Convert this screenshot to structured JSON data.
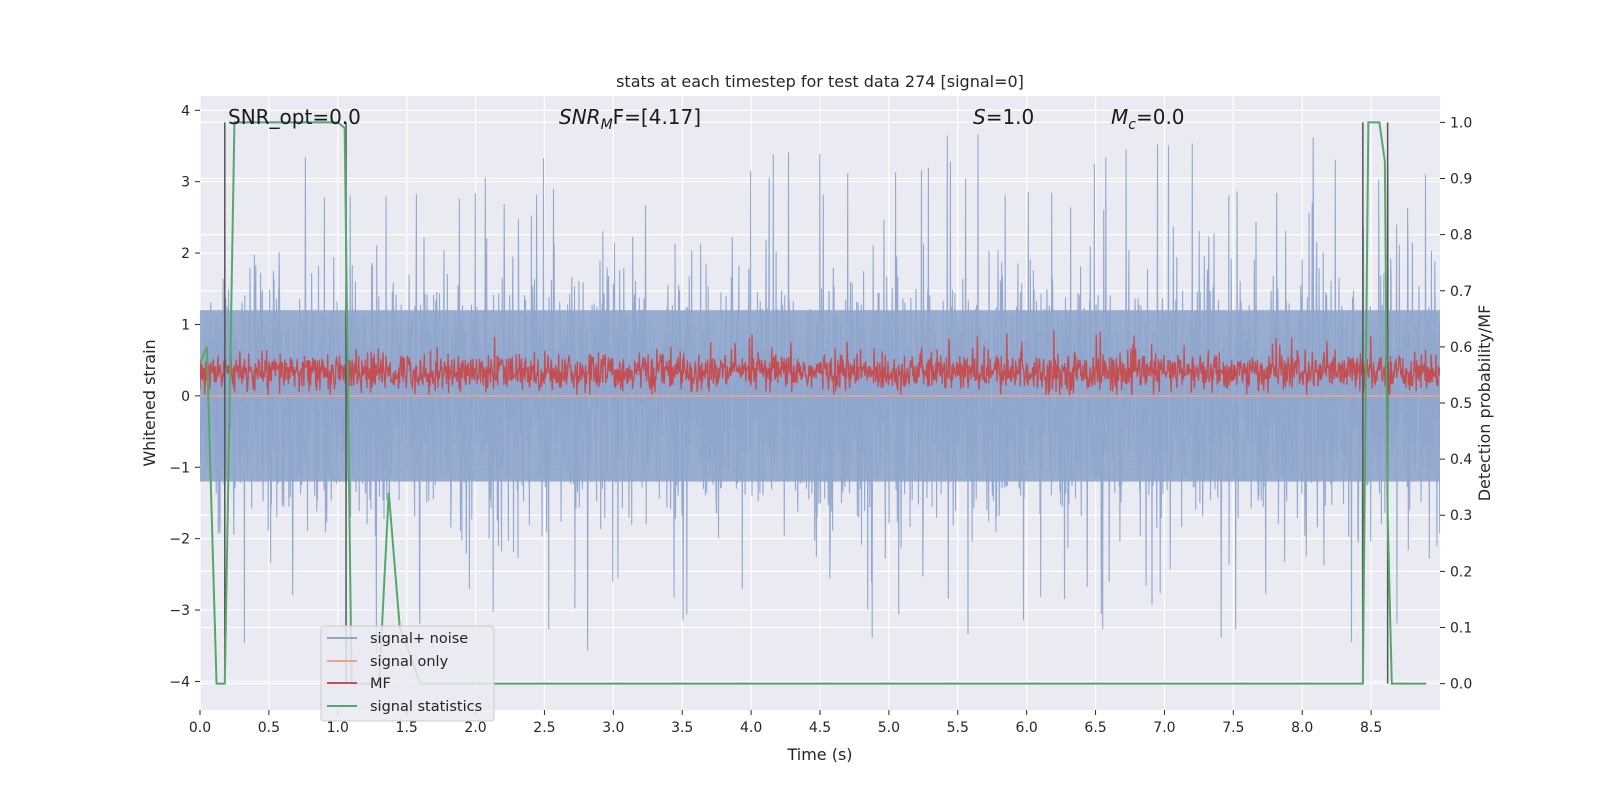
{
  "chart_data": {
    "type": "line",
    "title": "stats at each timestep for test data 274 [signal=0]",
    "xlabel": "Time (s)",
    "ylabel": "Whitened strain",
    "y2label": "Detection probability/MF",
    "xlim": [
      0.0,
      9.0
    ],
    "ylim": [
      -4.4,
      4.2
    ],
    "y2lim": [
      -0.047,
      1.047
    ],
    "x_ticks": [
      0.0,
      0.5,
      1.0,
      1.5,
      2.0,
      2.5,
      3.0,
      3.5,
      4.0,
      4.5,
      5.0,
      5.5,
      6.0,
      6.5,
      7.0,
      7.5,
      8.0,
      8.5
    ],
    "x_tick_labels": [
      "0.0",
      "0.5",
      "1.0",
      "1.5",
      "2.0",
      "2.5",
      "3.0",
      "3.5",
      "4.0",
      "4.5",
      "5.0",
      "5.5",
      "6.0",
      "6.5",
      "7.0",
      "7.5",
      "8.0",
      "8.5"
    ],
    "y_ticks": [
      -4,
      -3,
      -2,
      -1,
      0,
      1,
      2,
      3,
      4
    ],
    "y_tick_labels": [
      "−4",
      "−3",
      "−2",
      "−1",
      "0",
      "1",
      "2",
      "3",
      "4"
    ],
    "y2_ticks": [
      0.0,
      0.1,
      0.2,
      0.3,
      0.4,
      0.5,
      0.6,
      0.7,
      0.8,
      0.9,
      1.0
    ],
    "y2_tick_labels": [
      "0.0",
      "0.1",
      "0.2",
      "0.3",
      "0.4",
      "0.5",
      "0.6",
      "0.7",
      "0.8",
      "0.9",
      "1.0"
    ],
    "grid": true,
    "legend_position": "lower-left",
    "annotations": {
      "snr_opt": "SNR_opt=0.0",
      "snr_mf_main": "SNR",
      "snr_mf_sub": "M",
      "snr_mf_rest": "F=[4.17]",
      "s_var": "S",
      "s_rest": "=1.0",
      "mc_var": "M",
      "mc_sub": "c",
      "mc_rest": "=0.0"
    },
    "series": [
      {
        "name": "signal+ noise",
        "color": "#8fa5cc",
        "axis": "left",
        "description_shape": "dense noise band",
        "x_range": [
          0.0,
          9.0
        ],
        "band_core": [
          -1.2,
          1.2
        ],
        "typical_peaks": [
          -2.8,
          2.8
        ],
        "extremes": [
          -4.0,
          3.9
        ]
      },
      {
        "name": "signal only",
        "color": "#e8a58a",
        "axis": "left",
        "x": [
          0.0,
          9.0
        ],
        "y": [
          0.0,
          0.0
        ]
      },
      {
        "name": "MF",
        "color": "#c44e52",
        "axis": "right",
        "x_range": [
          0.0,
          9.0
        ],
        "typical_range": [
          0.52,
          0.6
        ],
        "max_value": 0.63
      },
      {
        "name": "signal statistics",
        "color": "#55a868",
        "axis": "right",
        "x": [
          0.0,
          0.05,
          0.12,
          0.18,
          0.25,
          1.0,
          1.05,
          1.1,
          1.3,
          1.37,
          1.45,
          1.6,
          8.44,
          8.48,
          8.56,
          8.6,
          8.62,
          8.65,
          8.9
        ],
        "y": [
          0.57,
          0.6,
          0.0,
          0.0,
          1.0,
          1.0,
          0.99,
          0.0,
          0.0,
          0.34,
          0.1,
          0.0,
          0.0,
          1.0,
          1.0,
          0.93,
          0.3,
          0.0,
          0.0
        ]
      }
    ],
    "markers": {
      "color": "#555555",
      "x": [
        0.18,
        1.06,
        8.44,
        8.62
      ],
      "y_top": 1.0,
      "y_bottom": 0.0
    },
    "legend": [
      {
        "label": "signal+ noise",
        "color": "#8fa5cc"
      },
      {
        "label": "signal only",
        "color": "#e8a58a"
      },
      {
        "label": "MF",
        "color": "#c44e52"
      },
      {
        "label": "signal statistics",
        "color": "#55a868"
      }
    ]
  }
}
